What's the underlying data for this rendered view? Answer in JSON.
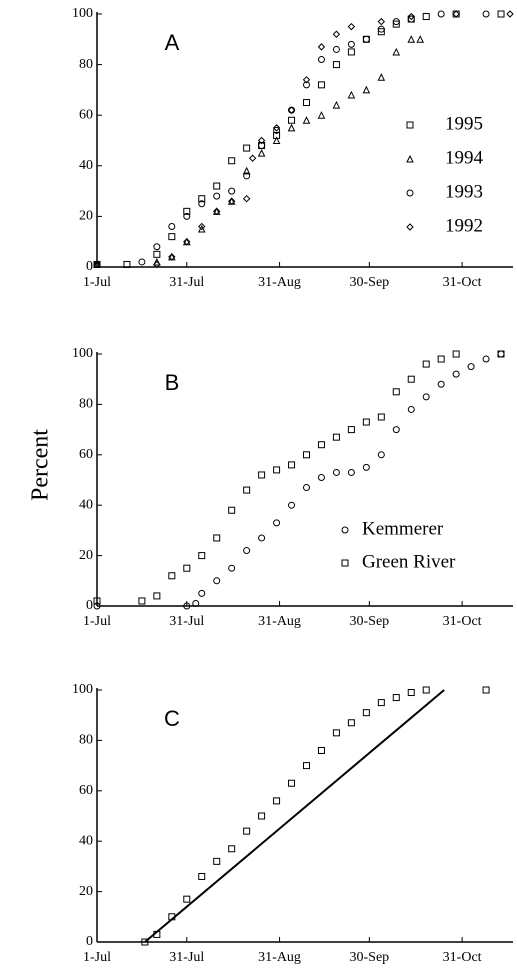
{
  "y_axis_label": "Percent",
  "chart_data": [
    {
      "type": "scatter",
      "title": "A",
      "xlim": [
        0,
        139
      ],
      "ylim": [
        0,
        100
      ],
      "xticks": [
        {
          "value": 0,
          "label": "1-Jul"
        },
        {
          "value": 30,
          "label": "31-Jul"
        },
        {
          "value": 61,
          "label": "31-Aug"
        },
        {
          "value": 91,
          "label": "30-Sep"
        },
        {
          "value": 122,
          "label": "31-Oct"
        }
      ],
      "yticks": [
        0,
        20,
        40,
        60,
        80,
        100
      ],
      "legend": "center right",
      "series": [
        {
          "name": "1995",
          "marker": "square",
          "color": "#000000",
          "x": [
            0,
            10,
            20,
            25,
            30,
            35,
            40,
            45,
            50,
            55,
            60,
            65,
            70,
            75,
            80,
            85,
            90,
            95,
            100,
            105,
            110,
            120,
            135
          ],
          "values": [
            1,
            1,
            5,
            12,
            22,
            27,
            32,
            42,
            47,
            48,
            52,
            58,
            65,
            72,
            80,
            85,
            90,
            93,
            96,
            98,
            99,
            100,
            100
          ]
        },
        {
          "name": "1994",
          "marker": "triangle",
          "color": "#000000",
          "x": [
            0,
            20,
            25,
            30,
            35,
            40,
            45,
            50,
            55,
            60,
            65,
            70,
            75,
            80,
            85,
            90,
            95,
            100,
            105,
            108
          ],
          "values": [
            1,
            2,
            4,
            10,
            15,
            22,
            26,
            38,
            45,
            50,
            55,
            58,
            60,
            64,
            68,
            70,
            75,
            85,
            90,
            90
          ]
        },
        {
          "name": "1993",
          "marker": "circle",
          "color": "#000000",
          "x": [
            0,
            15,
            20,
            25,
            30,
            35,
            40,
            45,
            50,
            55,
            60,
            65,
            70,
            75,
            80,
            85,
            90,
            95,
            100,
            105,
            115,
            130
          ],
          "values": [
            1,
            2,
            8,
            16,
            20,
            25,
            28,
            30,
            36,
            48,
            54,
            62,
            72,
            82,
            86,
            88,
            90,
            94,
            97,
            98,
            100,
            100
          ]
        },
        {
          "name": "1992",
          "marker": "diamond",
          "color": "#000000",
          "x": [
            0,
            20,
            25,
            30,
            35,
            40,
            45,
            50,
            52,
            55,
            60,
            65,
            70,
            75,
            80,
            85,
            95,
            105,
            120,
            138
          ],
          "values": [
            1,
            1,
            4,
            10,
            16,
            22,
            26,
            27,
            43,
            50,
            55,
            62,
            74,
            87,
            92,
            95,
            97,
            99,
            100,
            100
          ]
        }
      ]
    },
    {
      "type": "scatter",
      "title": "B",
      "xlim": [
        0,
        139
      ],
      "ylim": [
        0,
        100
      ],
      "xticks": [
        {
          "value": 0,
          "label": "1-Jul"
        },
        {
          "value": 30,
          "label": "31-Jul"
        },
        {
          "value": 61,
          "label": "31-Aug"
        },
        {
          "value": 91,
          "label": "30-Sep"
        },
        {
          "value": 122,
          "label": "31-Oct"
        }
      ],
      "yticks": [
        0,
        20,
        40,
        60,
        80,
        100
      ],
      "legend": "lower right",
      "series": [
        {
          "name": "Kemmerer",
          "marker": "circle",
          "color": "#000000",
          "x": [
            0,
            30,
            33,
            35,
            40,
            45,
            50,
            55,
            60,
            65,
            70,
            75,
            80,
            85,
            90,
            95,
            100,
            105,
            110,
            115,
            120,
            125,
            130,
            135
          ],
          "values": [
            0,
            0,
            1,
            5,
            10,
            15,
            22,
            27,
            33,
            40,
            47,
            51,
            53,
            53,
            55,
            60,
            70,
            78,
            83,
            88,
            92,
            95,
            98,
            100
          ]
        },
        {
          "name": "Green River",
          "marker": "square",
          "color": "#000000",
          "x": [
            0,
            15,
            20,
            25,
            30,
            35,
            40,
            45,
            50,
            55,
            60,
            65,
            70,
            75,
            80,
            85,
            90,
            95,
            100,
            105,
            110,
            115,
            120,
            135
          ],
          "values": [
            2,
            2,
            4,
            12,
            15,
            20,
            27,
            38,
            46,
            52,
            54,
            56,
            60,
            64,
            67,
            70,
            73,
            75,
            85,
            90,
            96,
            98,
            100,
            100
          ]
        }
      ]
    },
    {
      "type": "scatter",
      "title": "C",
      "xlim": [
        0,
        139
      ],
      "ylim": [
        0,
        100
      ],
      "xticks": [
        {
          "value": 0,
          "label": "1-Jul"
        },
        {
          "value": 30,
          "label": "31-Jul"
        },
        {
          "value": 61,
          "label": "31-Aug"
        },
        {
          "value": 91,
          "label": "30-Sep"
        },
        {
          "value": 122,
          "label": "31-Oct"
        }
      ],
      "yticks": [
        0,
        20,
        40,
        60,
        80,
        100
      ],
      "series": [
        {
          "marker": "square",
          "color": "#000000",
          "x": [
            16,
            20,
            25,
            30,
            35,
            40,
            45,
            50,
            55,
            60,
            65,
            70,
            75,
            80,
            85,
            90,
            95,
            100,
            105,
            110,
            130
          ],
          "values": [
            0,
            3,
            10,
            17,
            26,
            32,
            37,
            44,
            50,
            56,
            63,
            70,
            76,
            83,
            87,
            91,
            95,
            97,
            99,
            100,
            100
          ]
        },
        {
          "marker": "none",
          "style": "line",
          "color": "#000000",
          "x": [
            16,
            116
          ],
          "values": [
            0,
            100
          ]
        }
      ]
    }
  ]
}
